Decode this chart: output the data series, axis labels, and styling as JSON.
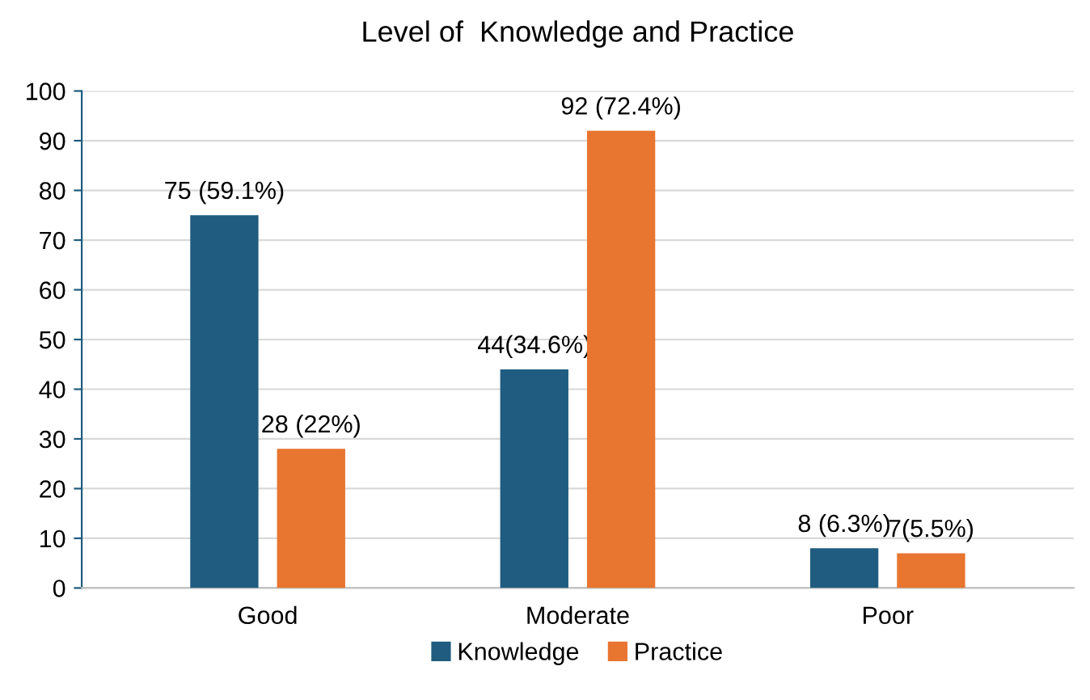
{
  "chart_data": {
    "type": "bar",
    "title": "Level of  Knowledge and Practice",
    "categories": [
      "Good",
      "Moderate",
      "Poor"
    ],
    "series": [
      {
        "name": "Knowledge",
        "color": "#1f5c7f",
        "values": [
          75,
          44,
          8
        ],
        "value_labels": [
          "75 (59.1%)",
          "44(34.6%)",
          "8 (6.3%)"
        ]
      },
      {
        "name": "Practice",
        "color": "#e87530",
        "values": [
          28,
          92,
          7
        ],
        "value_labels": [
          "28 (22%)",
          "92 (72.4%)",
          "7(5.5%)"
        ]
      }
    ],
    "ylim": [
      0,
      100
    ],
    "yticks": [
      0,
      10,
      20,
      30,
      40,
      50,
      60,
      70,
      80,
      90,
      100
    ],
    "grid": "y",
    "legend": "bottom"
  }
}
